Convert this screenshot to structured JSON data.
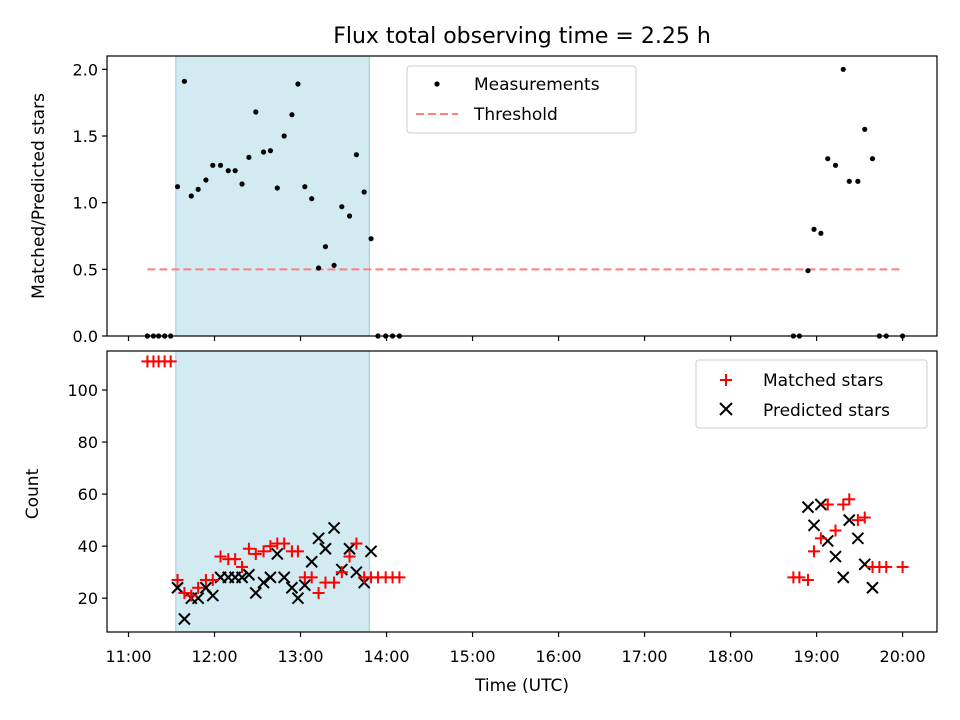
{
  "title": "Flux total observing time = 2.25 h",
  "xlabel": "Time (UTC)",
  "x_ticks": [
    "11:00",
    "12:00",
    "13:00",
    "14:00",
    "15:00",
    "16:00",
    "17:00",
    "18:00",
    "19:00",
    "20:00"
  ],
  "top_ylabel": "Matched/Predicted stars",
  "top_y_ticks": [
    "0.0",
    "0.5",
    "1.0",
    "1.5",
    "2.0"
  ],
  "bottom_ylabel": "Count",
  "bottom_y_ticks": [
    "20",
    "40",
    "60",
    "80",
    "100"
  ],
  "top_legend": {
    "measurements": "Measurements",
    "threshold": "Threshold"
  },
  "bottom_legend": {
    "matched": "Matched stars",
    "predicted": "Predicted stars"
  },
  "colors": {
    "threshold": "#ff7f7f",
    "matched": "#ff0000",
    "predicted": "#000000",
    "measurements": "#000000",
    "shade": "#add8e6"
  },
  "chart_data": [
    {
      "type": "scatter",
      "title": "Flux total observing time = 2.25 h",
      "ylabel": "Matched/Predicted stars",
      "x_unit": "hours UTC",
      "xlim": [
        10.75,
        20.4
      ],
      "ylim": [
        0,
        2.1
      ],
      "shaded_span": [
        11.55,
        13.8
      ],
      "threshold": {
        "name": "Threshold",
        "y": 0.5,
        "x_range": [
          11.22,
          20.0
        ]
      },
      "series": [
        {
          "name": "Measurements",
          "x": [
            11.22,
            11.29,
            11.35,
            11.42,
            11.49,
            11.57,
            11.65,
            11.73,
            11.81,
            11.9,
            11.98,
            12.07,
            12.16,
            12.24,
            12.32,
            12.4,
            12.48,
            12.57,
            12.65,
            12.73,
            12.81,
            12.9,
            12.97,
            13.05,
            13.13,
            13.21,
            13.29,
            13.39,
            13.48,
            13.57,
            13.65,
            13.74,
            13.82,
            13.9,
            13.99,
            14.07,
            14.15,
            18.73,
            18.8,
            18.9,
            18.97,
            19.05,
            19.13,
            19.22,
            19.31,
            19.38,
            19.48,
            19.56,
            19.65,
            19.73,
            19.81,
            20.0
          ],
          "y": [
            0,
            0,
            0,
            0,
            0,
            1.12,
            1.91,
            1.05,
            1.1,
            1.17,
            1.28,
            1.28,
            1.24,
            1.24,
            1.14,
            1.34,
            1.68,
            1.38,
            1.39,
            1.11,
            1.5,
            1.66,
            1.89,
            1.12,
            1.03,
            0.51,
            0.67,
            0.53,
            0.97,
            0.9,
            1.36,
            1.08,
            0.73,
            0,
            0,
            0,
            0,
            0,
            0,
            0.49,
            0.8,
            0.77,
            1.33,
            1.28,
            2.0,
            1.16,
            1.16,
            1.55,
            1.33,
            0,
            0,
            0
          ]
        }
      ]
    },
    {
      "type": "scatter",
      "xlabel": "Time (UTC)",
      "ylabel": "Count",
      "x_unit": "hours UTC",
      "xlim": [
        10.75,
        20.4
      ],
      "ylim": [
        7,
        115
      ],
      "shaded_span": [
        11.55,
        13.8
      ],
      "series": [
        {
          "name": "Matched stars",
          "marker": "+",
          "x": [
            11.22,
            11.29,
            11.35,
            11.42,
            11.49,
            11.57,
            11.65,
            11.73,
            11.81,
            11.9,
            11.98,
            12.07,
            12.16,
            12.24,
            12.32,
            12.4,
            12.48,
            12.57,
            12.65,
            12.73,
            12.81,
            12.9,
            12.97,
            13.05,
            13.13,
            13.21,
            13.29,
            13.39,
            13.48,
            13.57,
            13.65,
            13.74,
            13.82,
            13.9,
            13.99,
            14.07,
            14.15,
            18.73,
            18.8,
            18.9,
            18.97,
            19.05,
            19.13,
            19.22,
            19.31,
            19.38,
            19.48,
            19.56,
            19.65,
            19.73,
            19.81,
            20.0
          ],
          "y": [
            111,
            111,
            111,
            111,
            111,
            27,
            22,
            21,
            24,
            27,
            27,
            36,
            35,
            35,
            32,
            39,
            37,
            38,
            40,
            41,
            41,
            38,
            38,
            28,
            28,
            22,
            26,
            26,
            30,
            36,
            41,
            28,
            28,
            28,
            28,
            28,
            28,
            28,
            28,
            27,
            38,
            43,
            56,
            46,
            56,
            58,
            50,
            51,
            32,
            32,
            32,
            32
          ]
        },
        {
          "name": "Predicted stars",
          "marker": "x",
          "x": [
            11.57,
            11.65,
            11.73,
            11.81,
            11.9,
            11.98,
            12.07,
            12.16,
            12.24,
            12.32,
            12.4,
            12.48,
            12.57,
            12.65,
            12.73,
            12.81,
            12.9,
            12.97,
            13.05,
            13.13,
            13.21,
            13.29,
            13.39,
            13.48,
            13.57,
            13.65,
            13.74,
            13.82,
            18.9,
            18.97,
            19.05,
            19.13,
            19.22,
            19.31,
            19.38,
            19.48,
            19.56,
            19.65
          ],
          "y": [
            24,
            12,
            20,
            20,
            24,
            21,
            28,
            28,
            28,
            28,
            29,
            22,
            26,
            28,
            37,
            28,
            24,
            20,
            25,
            34,
            43,
            39,
            47,
            31,
            39,
            30,
            26,
            38,
            55,
            48,
            56,
            42,
            36,
            28,
            50,
            43,
            33,
            24
          ]
        }
      ]
    }
  ]
}
